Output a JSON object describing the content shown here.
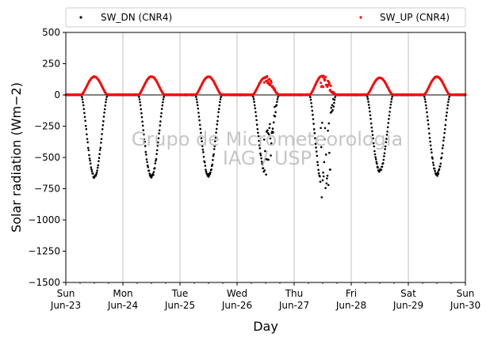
{
  "chart_data": {
    "type": "scatter",
    "ylabel": "Solar radiation (Wm−2)",
    "xlabel": "Day",
    "ylim": [
      -1500,
      500
    ],
    "yticks": [
      500,
      250,
      0,
      -250,
      -500,
      -750,
      -1000,
      -1250,
      -1500
    ],
    "ytick_labels": [
      "500",
      "250",
      "0",
      "−250",
      "−500",
      "−750",
      "−1000",
      "−1250",
      "−1500"
    ],
    "xlim": [
      "2024-06-23",
      "2024-06-30"
    ],
    "xticks": [
      {
        "day": "Sun",
        "date": "Jun-23"
      },
      {
        "day": "Mon",
        "date": "Jun-24"
      },
      {
        "day": "Tue",
        "date": "Jun-25"
      },
      {
        "day": "Wed",
        "date": "Jun-26"
      },
      {
        "day": "Thu",
        "date": "Jun-27"
      },
      {
        "day": "Fri",
        "date": "Jun-28"
      },
      {
        "day": "Sat",
        "date": "Jun-29"
      },
      {
        "day": "Sun",
        "date": "Jun-30"
      }
    ],
    "grid": "vertical",
    "legend_position": "top",
    "watermark": [
      "Grupo de Micrometeorologia",
      "IAG / USP"
    ],
    "series": [
      {
        "name": "SW_DN (CNR4)",
        "color": "#000000",
        "daily_min": [
          -670,
          -670,
          -655,
          -645,
          -740,
          -620,
          -650
        ],
        "x": [
          "2024-06-23",
          "2024-06-24",
          "2024-06-25",
          "2024-06-26",
          "2024-06-27",
          "2024-06-28",
          "2024-06-29"
        ]
      },
      {
        "name": "SW_UP (CNR4)",
        "color": "#ff0000",
        "daily_max": [
          148,
          150,
          148,
          145,
          160,
          140,
          148
        ],
        "x": [
          "2024-06-23",
          "2024-06-24",
          "2024-06-25",
          "2024-06-26",
          "2024-06-27",
          "2024-06-28",
          "2024-06-29"
        ]
      }
    ]
  }
}
